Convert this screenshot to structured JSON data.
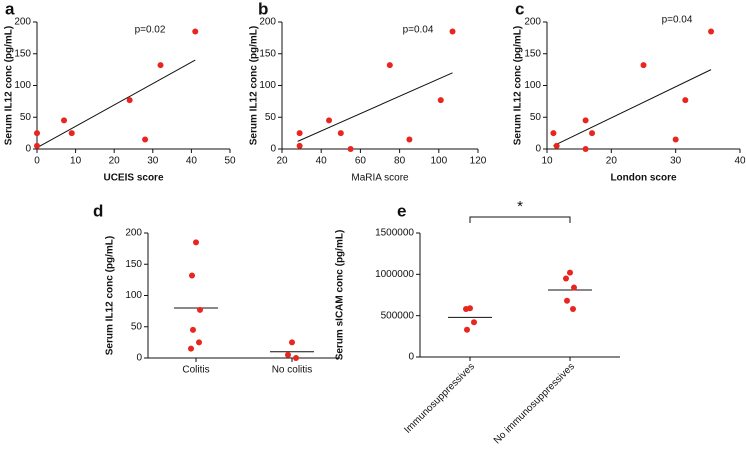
{
  "chart_data": [
    {
      "type": "scatter",
      "label": "a",
      "xlabel": "UCEIS score",
      "ylabel": "Serum IL12 conc (pg/mL)",
      "annotation": "p=0.02",
      "x": [
        0,
        0,
        7,
        9,
        24,
        28,
        32,
        41
      ],
      "values": [
        25,
        5,
        45,
        25,
        77,
        15,
        132,
        185
      ],
      "color": "#e8251f",
      "trend": {
        "x": [
          0,
          41
        ],
        "y": [
          2,
          140
        ]
      },
      "xlim": [
        0,
        50
      ],
      "xticks": [
        0,
        10,
        20,
        30,
        40,
        50
      ],
      "ylim": [
        0,
        200
      ],
      "yticks": [
        0,
        50,
        100,
        150,
        200
      ]
    },
    {
      "type": "scatter",
      "label": "b",
      "xlabel": "MaRIA score",
      "ylabel": "Serum IL12 conc (pg/mL)",
      "annotation": "p=0.04",
      "x": [
        29,
        29,
        44,
        50,
        55,
        75,
        85,
        101,
        107
      ],
      "values": [
        25,
        5,
        45,
        25,
        0,
        132,
        15,
        77,
        185
      ],
      "color": "#e8251f",
      "trend": {
        "x": [
          28,
          107
        ],
        "y": [
          12,
          120
        ]
      },
      "xlim": [
        20,
        120
      ],
      "xticks": [
        20,
        40,
        60,
        80,
        100,
        120
      ],
      "ylim": [
        0,
        200
      ],
      "yticks": [
        0,
        50,
        100,
        150,
        200
      ]
    },
    {
      "type": "scatter",
      "label": "c",
      "xlabel": "London score",
      "ylabel": "Serum IL12 conc (pg/mL)",
      "annotation": "p=0.04",
      "x": [
        11,
        11.5,
        16,
        16,
        17,
        25,
        30,
        31.5,
        35.5
      ],
      "values": [
        25,
        5,
        45,
        0,
        25,
        132,
        15,
        77,
        185
      ],
      "color": "#e8251f",
      "trend": {
        "x": [
          11,
          35.5
        ],
        "y": [
          5,
          125
        ]
      },
      "xlim": [
        10,
        40
      ],
      "xticks": [
        10,
        20,
        30,
        40
      ],
      "ylim": [
        0,
        200
      ],
      "yticks": [
        0,
        50,
        100,
        150,
        200
      ]
    },
    {
      "type": "dot",
      "label": "d",
      "ylabel": "Serum IL12 conc (pg/mL)",
      "categories": [
        "Colitis",
        "No colitis"
      ],
      "values": [
        [
          185,
          132,
          77,
          45,
          25,
          15
        ],
        [
          25,
          5,
          0
        ]
      ],
      "medians": [
        80,
        10
      ],
      "color": "#e8251f",
      "ylim": [
        0,
        200
      ],
      "yticks": [
        0,
        50,
        100,
        150,
        200
      ]
    },
    {
      "type": "dot",
      "label": "e",
      "ylabel": "Serum sICAM conc (pg/mL)",
      "annotation": "*",
      "categories": [
        "Immunosuppressives",
        "No immunosuppressives"
      ],
      "values": [
        [
          590000,
          580000,
          420000,
          330000
        ],
        [
          1020000,
          950000,
          840000,
          680000,
          580000
        ]
      ],
      "medians": [
        480000,
        810000
      ],
      "color": "#e8251f",
      "ylim": [
        0,
        1500000
      ],
      "yticks": [
        0,
        500000,
        1000000,
        1500000
      ]
    }
  ]
}
